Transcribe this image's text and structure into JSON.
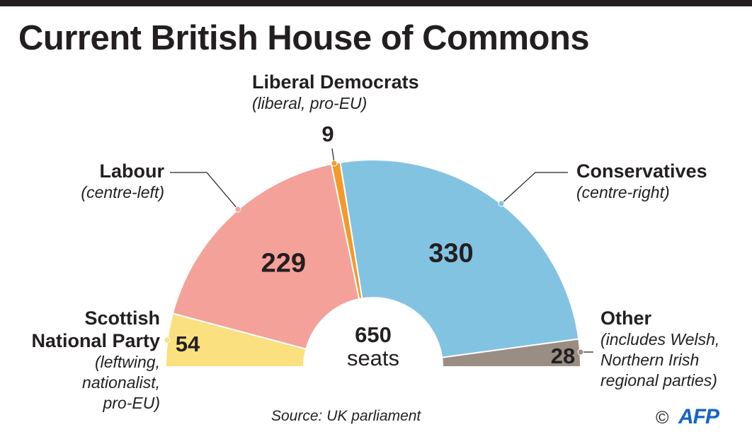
{
  "title": "Current British House of Commons",
  "chart_data": {
    "type": "pie",
    "subtype": "semicircle",
    "total": "650",
    "total_unit": "seats",
    "slices": [
      {
        "key": "snp",
        "name": "Scottish National Party",
        "description": "(leftwing, nationalist, pro-EU)",
        "value": 54,
        "color": "#fbe07f"
      },
      {
        "key": "labour",
        "name": "Labour",
        "description": "(centre-left)",
        "value": 229,
        "color": "#f4a19a"
      },
      {
        "key": "libdem",
        "name": "Liberal Democrats",
        "description": "(liberal, pro-EU)",
        "value": 9,
        "color": "#f39a2a"
      },
      {
        "key": "conservatives",
        "name": "Conservatives",
        "description": "(centre-right)",
        "value": 330,
        "color": "#83c3e2"
      },
      {
        "key": "other",
        "name": "Other",
        "description": "(includes Welsh, Northern Irish regional parties)",
        "value": 28,
        "color": "#9a8d84"
      }
    ]
  },
  "labels": {
    "snp": {
      "name_lines": [
        "Scottish",
        "National Party"
      ],
      "desc_lines": [
        "(leftwing,",
        "nationalist,",
        "pro-EU)"
      ]
    },
    "labour": {
      "name_lines": [
        "Labour"
      ],
      "desc_lines": [
        "(centre-left)"
      ]
    },
    "libdem": {
      "name_lines": [
        "Liberal Democrats"
      ],
      "desc_lines": [
        "(liberal, pro-EU)"
      ]
    },
    "conservatives": {
      "name_lines": [
        "Conservatives"
      ],
      "desc_lines": [
        "(centre-right)"
      ]
    },
    "other": {
      "name_lines": [
        "Other"
      ],
      "desc_lines": [
        "(includes Welsh,",
        "Northern Irish",
        "regional parties)"
      ]
    }
  },
  "source": "Source: UK parliament",
  "credit": {
    "copyright": "©",
    "logo": "AFP"
  }
}
